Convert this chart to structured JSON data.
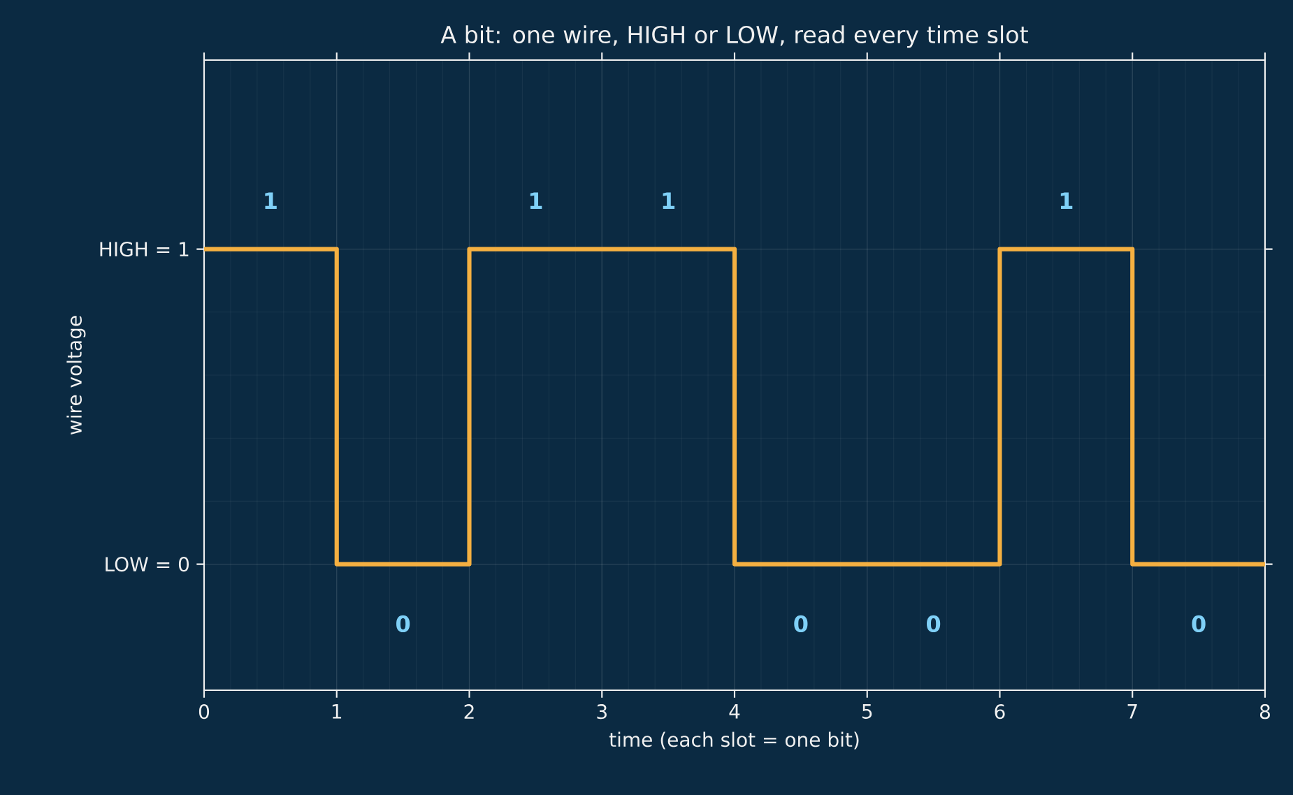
{
  "chart_data": {
    "type": "step",
    "title": "A bit: one wire, HIGH or LOW, read every time slot",
    "xlabel": "time  (each slot = one bit)",
    "ylabel": "wire voltage",
    "x": [
      0,
      1,
      2,
      3,
      4,
      5,
      6,
      7,
      8
    ],
    "series": [
      {
        "color": "#f5b041",
        "values": [
          1,
          0,
          1,
          1,
          0,
          0,
          1,
          0,
          0
        ]
      }
    ],
    "xlim": [
      0,
      8
    ],
    "xticks": [
      0,
      1,
      2,
      3,
      4,
      5,
      6,
      7,
      8
    ],
    "ylim": [
      -0.4,
      1.6
    ],
    "yticks": [
      {
        "value": 0,
        "label": "LOW = 0"
      },
      {
        "value": 1,
        "label": "HIGH = 1"
      }
    ],
    "grid": true,
    "annotations": [
      "1",
      "0",
      "1",
      "1",
      "0",
      "0",
      "1",
      "0"
    ]
  }
}
